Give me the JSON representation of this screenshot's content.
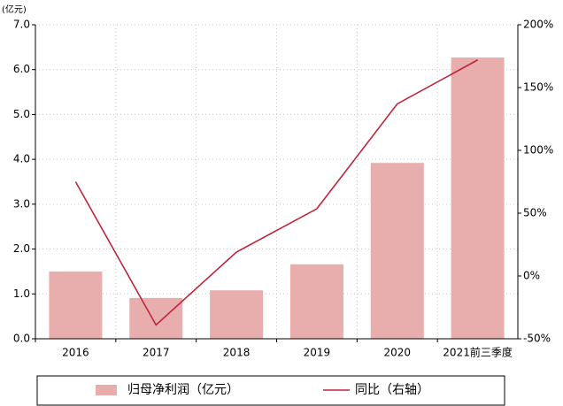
{
  "chart_data": {
    "type": "bar",
    "ylabel": "(亿元)",
    "categories": [
      "2016",
      "2017",
      "2018",
      "2019",
      "2020",
      "2021前三季度"
    ],
    "series": [
      {
        "name": "归母净利润（亿元）",
        "type": "bar",
        "color": "#e8aeae",
        "values": [
          1.5,
          0.91,
          1.08,
          1.66,
          3.92,
          6.27
        ]
      },
      {
        "name": "同比（右轴）",
        "type": "line",
        "axis": "y2",
        "color": "#c0253a",
        "values": [
          75,
          -39,
          19,
          53.5,
          137,
          172
        ]
      }
    ],
    "ylim": [
      0,
      7
    ],
    "yticks": [
      {
        "value": 0,
        "label": "0.0"
      },
      {
        "value": 1,
        "label": "1.0"
      },
      {
        "value": 2,
        "label": "2.0"
      },
      {
        "value": 3,
        "label": "3.0"
      },
      {
        "value": 4,
        "label": "4.0"
      },
      {
        "value": 5,
        "label": "5.0"
      },
      {
        "value": 6,
        "label": "6.0"
      },
      {
        "value": 7,
        "label": "7.0"
      }
    ],
    "y2lim": [
      -50,
      200
    ],
    "y2ticks": [
      {
        "value": -50,
        "label": "-50%"
      },
      {
        "value": 0,
        "label": "0%"
      },
      {
        "value": 50,
        "label": "50%"
      },
      {
        "value": 100,
        "label": "100%"
      },
      {
        "value": 150,
        "label": "150%"
      },
      {
        "value": 200,
        "label": "200%"
      }
    ],
    "grid": true,
    "legend": "bottom"
  }
}
